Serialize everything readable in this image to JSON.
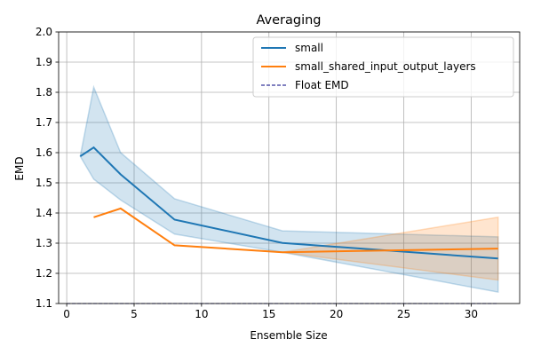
{
  "chart_data": {
    "type": "line",
    "title": "Averaging",
    "xlabel": "Ensemble Size",
    "ylabel": "EMD",
    "xlim": [
      -0.6,
      33.6
    ],
    "ylim": [
      1.1,
      2.0
    ],
    "xticks": [
      0,
      5,
      10,
      15,
      20,
      25,
      30
    ],
    "yticks": [
      1.1,
      1.2,
      1.3,
      1.4,
      1.5,
      1.6,
      1.7,
      1.8,
      1.9,
      2.0
    ],
    "grid": true,
    "legend_position": "upper-right",
    "series": [
      {
        "name": "small",
        "color": "#1f77b4",
        "style": "solid",
        "x": [
          1,
          2,
          4,
          8,
          16,
          32
        ],
        "y": [
          1.588,
          1.617,
          1.528,
          1.378,
          1.301,
          1.249
        ],
        "band_lower": [
          1.588,
          1.512,
          1.443,
          1.33,
          1.27,
          1.138
        ],
        "band_upper": [
          1.588,
          1.817,
          1.6,
          1.447,
          1.341,
          1.321
        ]
      },
      {
        "name": "small_shared_input_output_layers",
        "color": "#ff7f0e",
        "style": "solid",
        "x": [
          2,
          4,
          8,
          16,
          32
        ],
        "y": [
          1.386,
          1.415,
          1.293,
          1.27,
          1.282
        ],
        "band_lower": [
          1.386,
          1.415,
          1.293,
          1.27,
          1.178
        ],
        "band_upper": [
          1.386,
          1.415,
          1.293,
          1.27,
          1.386
        ]
      },
      {
        "name": "Float EMD",
        "color": "#000080",
        "style": "dashed",
        "x": [
          0,
          32
        ],
        "y": [
          1.1,
          1.1
        ]
      }
    ]
  }
}
